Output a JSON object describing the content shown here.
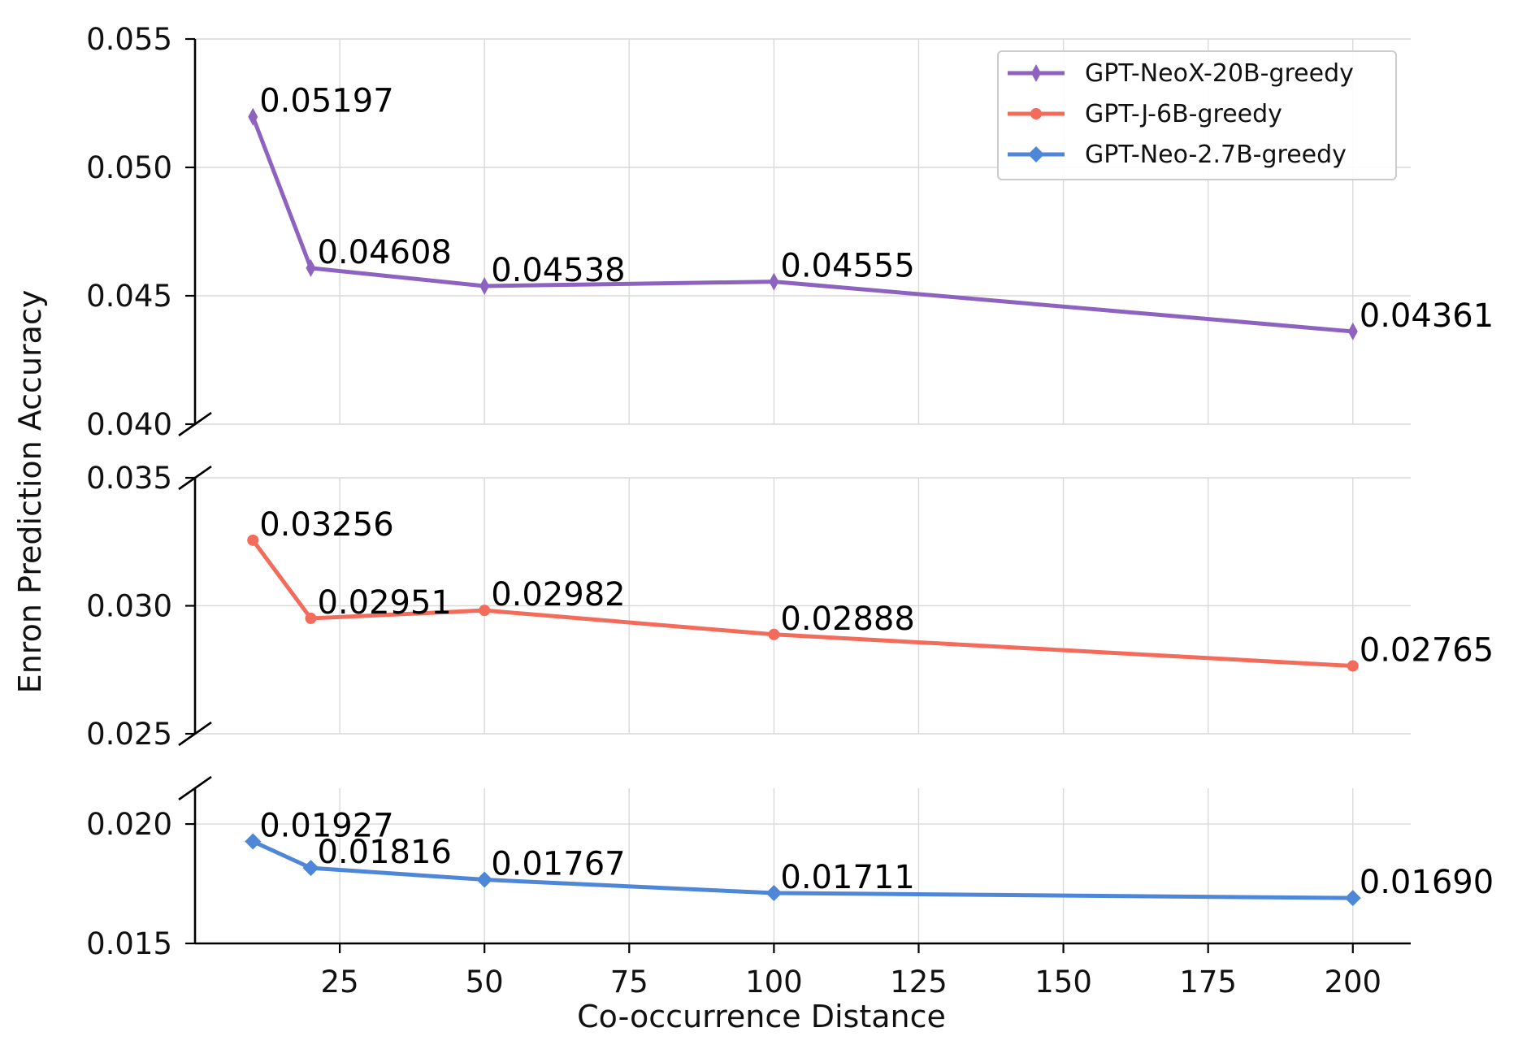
{
  "chart_data": {
    "type": "line",
    "layout": "broken-y-axis",
    "xlabel": "Co-occurrence Distance",
    "ylabel": "Enron Prediction Accuracy",
    "x": [
      10,
      20,
      50,
      100,
      200
    ],
    "xlim": [
      0,
      210
    ],
    "xticks": [
      25,
      50,
      75,
      100,
      125,
      150,
      175,
      200
    ],
    "grid": true,
    "legend_position": "top-right",
    "panels": [
      {
        "ylim": [
          0.04,
          0.055
        ],
        "yticks": [
          "0.040",
          "0.045",
          "0.050",
          "0.055"
        ],
        "series_index": 0
      },
      {
        "ylim": [
          0.025,
          0.035
        ],
        "yticks": [
          "0.025",
          "0.030",
          "0.035"
        ],
        "series_index": 1
      },
      {
        "ylim": [
          0.015,
          0.0215
        ],
        "yticks": [
          "0.015",
          "0.020"
        ],
        "series_index": 2
      }
    ],
    "series": [
      {
        "name": "GPT-NeoX-20B-greedy",
        "color": "#8e63bf",
        "marker": "thin-diamond",
        "values": [
          0.05197,
          0.04608,
          0.04538,
          0.04555,
          0.04361
        ],
        "labels": [
          "0.05197",
          "0.04608",
          "0.04538",
          "0.04555",
          "0.04361"
        ]
      },
      {
        "name": "GPT-J-6B-greedy",
        "color": "#f26b5b",
        "marker": "circle",
        "values": [
          0.03256,
          0.02951,
          0.02982,
          0.02888,
          0.02765
        ],
        "labels": [
          "0.03256",
          "0.02951",
          "0.02982",
          "0.02888",
          "0.02765"
        ]
      },
      {
        "name": "GPT-Neo-2.7B-greedy",
        "color": "#4f87d8",
        "marker": "diamond",
        "values": [
          0.01927,
          0.01816,
          0.01767,
          0.01711,
          0.0169
        ],
        "labels": [
          "0.01927",
          "0.01816",
          "0.01767",
          "0.01711",
          "0.01690"
        ]
      }
    ]
  }
}
